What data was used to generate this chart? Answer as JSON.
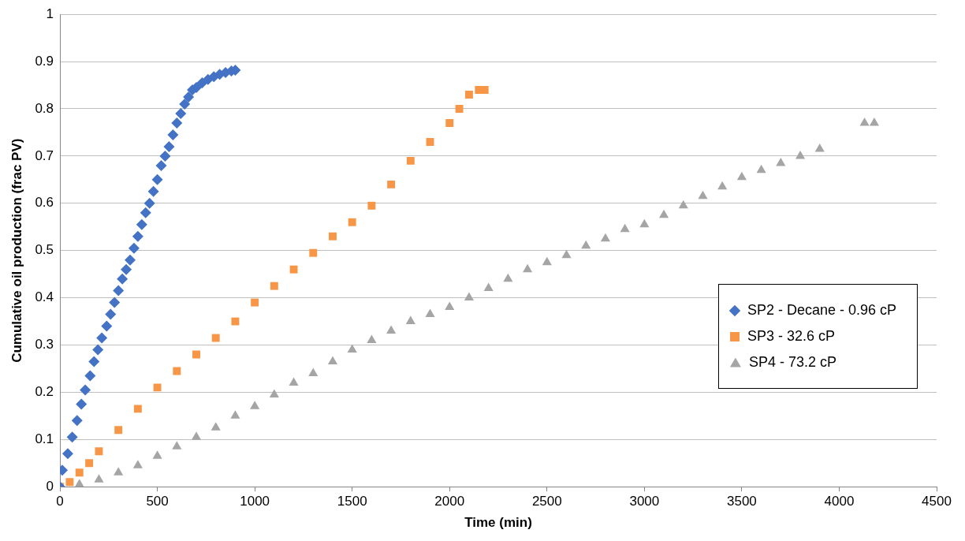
{
  "chart_data": {
    "type": "scatter",
    "xlabel": "Time (min)",
    "ylabel": "Cumulative oil production (frac PV)",
    "xlim": [
      0,
      4500
    ],
    "xticks": [
      0,
      500,
      1000,
      1500,
      2000,
      2500,
      3000,
      3500,
      4000,
      4500
    ],
    "ylim": [
      0,
      1
    ],
    "yticks": [
      0,
      0.1,
      0.2,
      0.3,
      0.4,
      0.5,
      0.6,
      0.7,
      0.8,
      0.9,
      1
    ],
    "grid": "y",
    "legend": "right",
    "series": [
      {
        "name": "SP2 - Decane - 0.96 cP",
        "color": "#4472c4",
        "marker": "diamond",
        "x": [
          0,
          12,
          40,
          63,
          88,
          110,
          130,
          155,
          175,
          195,
          215,
          240,
          260,
          280,
          300,
          320,
          340,
          360,
          380,
          400,
          420,
          440,
          460,
          480,
          500,
          520,
          540,
          560,
          580,
          600,
          620,
          640,
          660,
          680,
          700,
          730,
          760,
          790,
          820,
          850,
          880,
          900
        ],
        "values": [
          0,
          0.035,
          0.07,
          0.105,
          0.14,
          0.175,
          0.205,
          0.235,
          0.265,
          0.29,
          0.315,
          0.34,
          0.365,
          0.39,
          0.415,
          0.44,
          0.46,
          0.48,
          0.505,
          0.53,
          0.555,
          0.58,
          0.6,
          0.625,
          0.65,
          0.68,
          0.7,
          0.72,
          0.745,
          0.77,
          0.79,
          0.81,
          0.825,
          0.84,
          0.845,
          0.855,
          0.862,
          0.868,
          0.873,
          0.877,
          0.88,
          0.882
        ]
      },
      {
        "name": "SP3 - 32.6 cP",
        "color": "#f79646",
        "marker": "square",
        "x": [
          0,
          50,
          100,
          150,
          200,
          300,
          400,
          500,
          600,
          700,
          800,
          900,
          1000,
          1100,
          1200,
          1300,
          1400,
          1500,
          1600,
          1700,
          1800,
          1900,
          2000,
          2050,
          2100,
          2150,
          2180
        ],
        "values": [
          0,
          0.01,
          0.03,
          0.05,
          0.075,
          0.12,
          0.165,
          0.21,
          0.245,
          0.28,
          0.315,
          0.35,
          0.39,
          0.425,
          0.46,
          0.495,
          0.53,
          0.56,
          0.595,
          0.64,
          0.69,
          0.73,
          0.77,
          0.8,
          0.83,
          0.84,
          0.84
        ]
      },
      {
        "name": "SP4 - 73.2 cP",
        "color": "#a5a5a5",
        "marker": "triangle",
        "x": [
          100,
          200,
          300,
          400,
          500,
          600,
          700,
          800,
          900,
          1000,
          1100,
          1200,
          1300,
          1400,
          1500,
          1600,
          1700,
          1800,
          1900,
          2000,
          2100,
          2200,
          2300,
          2400,
          2500,
          2600,
          2700,
          2800,
          2900,
          3000,
          3100,
          3200,
          3300,
          3400,
          3500,
          3600,
          3700,
          3800,
          3900,
          4130,
          4180
        ],
        "values": [
          0.005,
          0.015,
          0.03,
          0.045,
          0.065,
          0.085,
          0.105,
          0.125,
          0.15,
          0.17,
          0.195,
          0.22,
          0.24,
          0.265,
          0.29,
          0.31,
          0.33,
          0.35,
          0.365,
          0.38,
          0.4,
          0.42,
          0.44,
          0.46,
          0.475,
          0.49,
          0.51,
          0.525,
          0.545,
          0.555,
          0.575,
          0.595,
          0.615,
          0.635,
          0.655,
          0.67,
          0.685,
          0.7,
          0.715,
          0.77,
          0.77
        ]
      }
    ]
  }
}
